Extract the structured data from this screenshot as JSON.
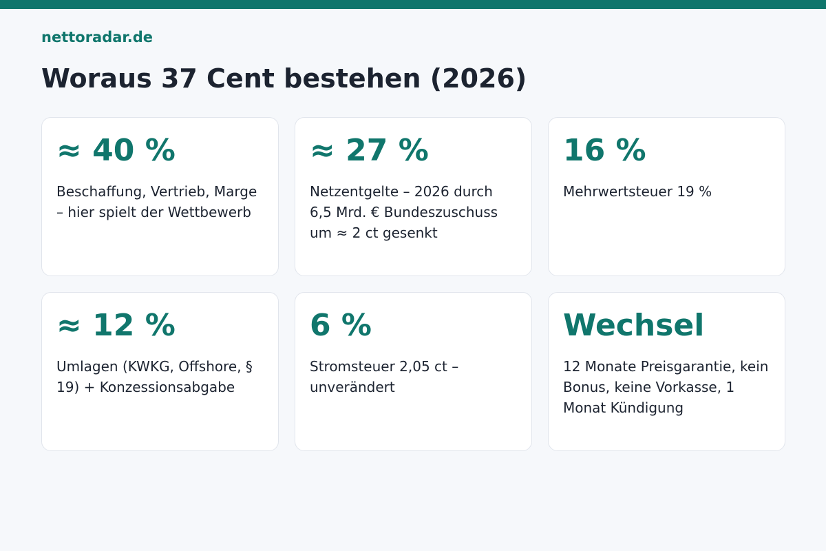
{
  "header": {
    "brand": "nettoradar.de",
    "title": "Woraus 37 Cent bestehen (2026)"
  },
  "cards": [
    {
      "value": "≈ 40 %",
      "text": "Beschaffung, Vertrieb, Marge – hier spielt der Wettbewerb"
    },
    {
      "value": "≈ 27 %",
      "text": "Netzentgelte – 2026 durch 6,5 Mrd. € Bundeszuschuss um ≈ 2 ct gesenkt"
    },
    {
      "value": "16 %",
      "text": "Mehrwertsteuer 19 %"
    },
    {
      "value": "≈ 12 %",
      "text": "Umlagen (KWKG, Offshore, § 19) + Konzessionsabgabe"
    },
    {
      "value": "6 %",
      "text": "Stromsteuer 2,05 ct – unverändert"
    },
    {
      "value": "Wechsel",
      "text": "12 Monate Preisgarantie, kein Bonus, keine Vorkasse, 1 Monat Kündigung"
    }
  ],
  "colors": {
    "accent": "#10766c",
    "background": "#f6f8fb",
    "card": "#ffffff",
    "text": "#1c2330"
  }
}
